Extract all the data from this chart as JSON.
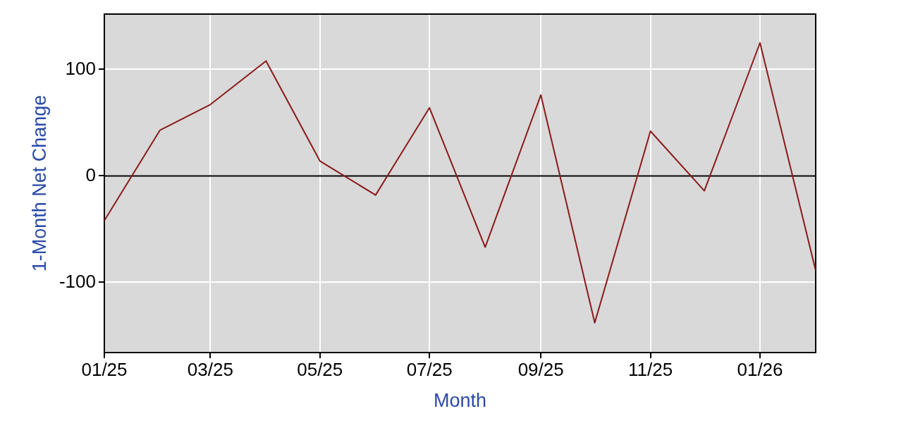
{
  "chart_data": {
    "type": "line",
    "xlabel": "Month",
    "ylabel": "1-Month Net Change",
    "x": [
      "2025-01",
      "2025-02",
      "2025-03",
      "2025-04",
      "2025-05",
      "2025-06",
      "2025-07",
      "2025-08",
      "2025-09",
      "2025-10",
      "2025-11",
      "2025-12",
      "2026-01",
      "2026-02"
    ],
    "values": [
      -42,
      43,
      67,
      108,
      14,
      -18,
      64,
      -67,
      76,
      -138,
      42,
      -14,
      125,
      -89
    ],
    "color": "#8b1a1a",
    "xlim": [
      "2025-01",
      "2026-02"
    ],
    "xticks": [
      {
        "value": "2025-01",
        "label": "01/25"
      },
      {
        "value": "2025-03",
        "label": "03/25"
      },
      {
        "value": "2025-05",
        "label": "05/25"
      },
      {
        "value": "2025-07",
        "label": "07/25"
      },
      {
        "value": "2025-09",
        "label": "09/25"
      },
      {
        "value": "2025-11",
        "label": "11/25"
      },
      {
        "value": "2026-01",
        "label": "01/26"
      }
    ],
    "ylim": [
      -166,
      152
    ],
    "yticks": [
      -100,
      0,
      100
    ],
    "ref_lines": [
      {
        "axis": "y",
        "value": 0,
        "color": "#000000"
      }
    ],
    "grid": true,
    "marker": "none"
  }
}
